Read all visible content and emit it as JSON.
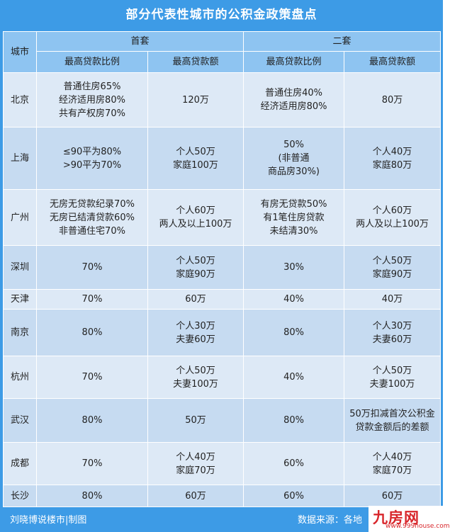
{
  "title": "部分代表性城市的公积金政策盘点",
  "headers": {
    "city": "城市",
    "first": "首套",
    "second": "二套",
    "ratio": "最高贷款比例",
    "amount": "最高贷款额"
  },
  "rows": [
    {
      "city": "北京",
      "first_ratio": [
        "普通住房65%",
        "经济适用房80%",
        "共有产权房70%"
      ],
      "first_amount": [
        "120万"
      ],
      "second_ratio": [
        "普通住房40%",
        "经济适用房80%"
      ],
      "second_amount": [
        "80万"
      ]
    },
    {
      "city": "上海",
      "first_ratio": [
        "≤90平为80%",
        ">90平为70%"
      ],
      "first_amount": [
        "个人50万",
        "家庭100万"
      ],
      "second_ratio": [
        "50%",
        "(非普通",
        "商品房30%)"
      ],
      "second_amount": [
        "个人40万",
        "家庭80万"
      ]
    },
    {
      "city": "广州",
      "first_ratio": [
        "无房无贷款纪录70%",
        "无房已结清贷款60%",
        "非普通住宅70%"
      ],
      "first_amount": [
        "个人60万",
        "两人及以上100万"
      ],
      "second_ratio": [
        "有房无贷款50%",
        "有1笔住房贷款",
        "未结清30%"
      ],
      "second_amount": [
        "个人60万",
        "两人及以上100万"
      ]
    },
    {
      "city": "深圳",
      "first_ratio": [
        "70%"
      ],
      "first_amount": [
        "个人50万",
        "家庭90万"
      ],
      "second_ratio": [
        "30%"
      ],
      "second_amount": [
        "个人50万",
        "家庭90万"
      ]
    },
    {
      "city": "天津",
      "first_ratio": [
        "70%"
      ],
      "first_amount": [
        "60万"
      ],
      "second_ratio": [
        "40%"
      ],
      "second_amount": [
        "40万"
      ]
    },
    {
      "city": "南京",
      "first_ratio": [
        "80%"
      ],
      "first_amount": [
        "个人30万",
        "夫妻60万"
      ],
      "second_ratio": [
        "80%"
      ],
      "second_amount": [
        "个人30万",
        "夫妻60万"
      ]
    },
    {
      "city": "杭州",
      "first_ratio": [
        "70%"
      ],
      "first_amount": [
        "个人50万",
        "夫妻100万"
      ],
      "second_ratio": [
        "40%"
      ],
      "second_amount": [
        "个人50万",
        "夫妻100万"
      ]
    },
    {
      "city": "武汉",
      "first_ratio": [
        "80%"
      ],
      "first_amount": [
        "50万"
      ],
      "second_ratio": [
        "80%"
      ],
      "second_amount": [
        "50万扣减首次公积金",
        "贷款金额后的差额"
      ]
    },
    {
      "city": "成都",
      "first_ratio": [
        "70%"
      ],
      "first_amount": [
        "个人40万",
        "家庭70万"
      ],
      "second_ratio": [
        "60%"
      ],
      "second_amount": [
        "个人40万",
        "家庭70万"
      ]
    },
    {
      "city": "长沙",
      "first_ratio": [
        "80%"
      ],
      "first_amount": [
        "60万"
      ],
      "second_ratio": [
        "60%"
      ],
      "second_amount": [
        "60万"
      ]
    }
  ],
  "footer": {
    "credit": "刘晓博说楼市|制图",
    "source": "数据来源：各地",
    "logo_main": "九房网",
    "logo_sub": "www.999house.com"
  },
  "colors": {
    "background": "#3d9be6",
    "header_cell": "#8ec4f1",
    "row_light": "#dde9f6",
    "row_dark": "#c6dbf1",
    "logo_red": "#d8262b"
  }
}
